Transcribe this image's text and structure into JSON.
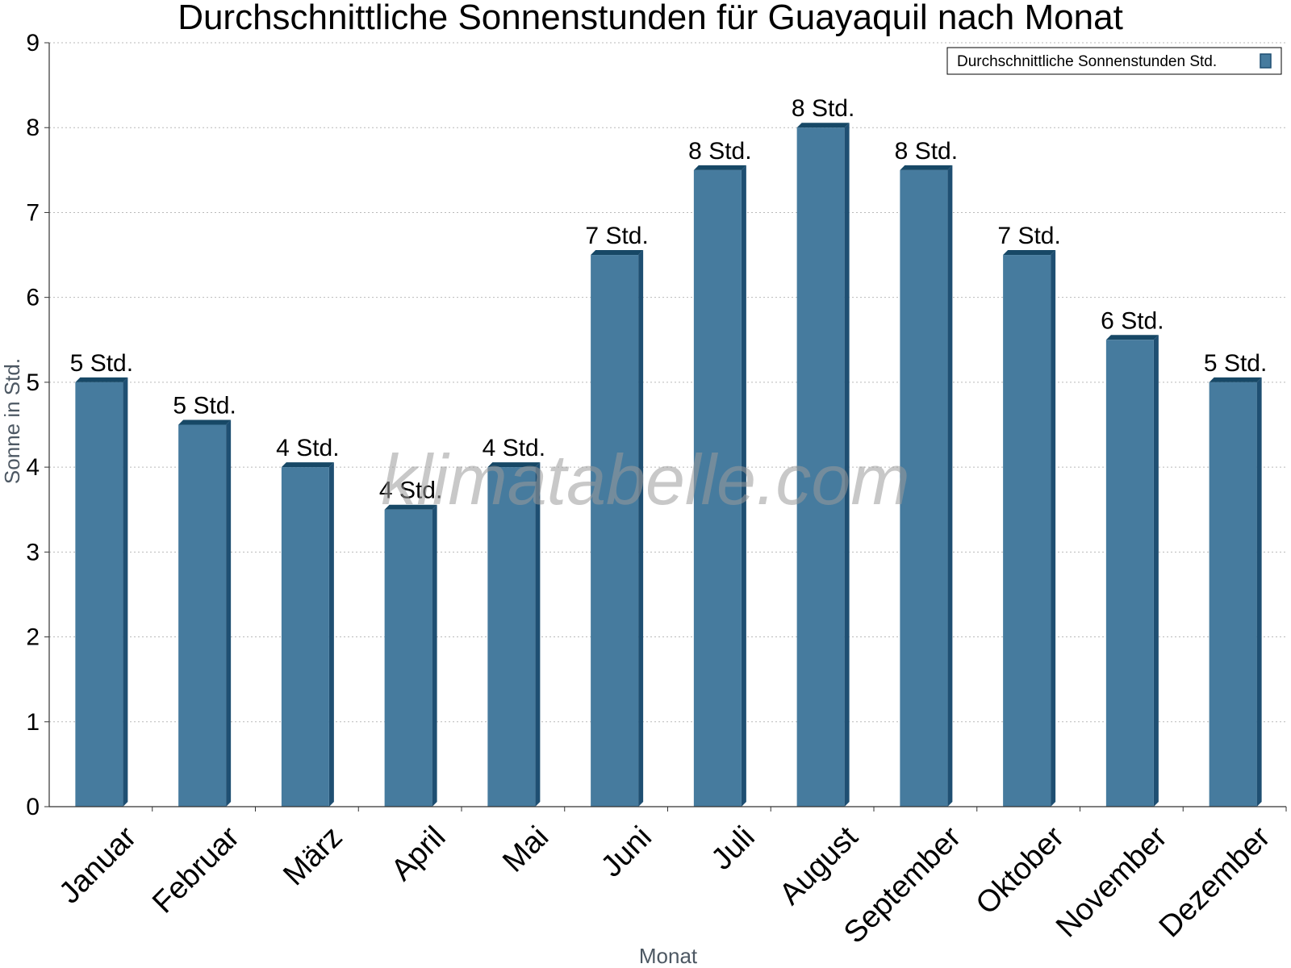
{
  "colors": {
    "bar_face": "#467b9e",
    "bar_side": "#1f4f72",
    "bar_top": "#174866",
    "grid": "#b9b9b9",
    "axis": "#333333"
  },
  "watermark": "klimatabelle.com",
  "chart_data": {
    "type": "bar",
    "title": "Durchschnittliche Sonnenstunden für Guayaquil nach Monat",
    "xlabel": "Monat",
    "ylabel": "Sonne in Std.",
    "ylim": [
      0,
      9
    ],
    "yticks": [
      "0",
      "1",
      "2",
      "3",
      "4",
      "5",
      "6",
      "7",
      "8",
      "9"
    ],
    "grid": true,
    "legend_position": "top-right",
    "categories": [
      "Januar",
      "Februar",
      "März",
      "April",
      "Mai",
      "Juni",
      "Juli",
      "August",
      "September",
      "Oktober",
      "November",
      "Dezember"
    ],
    "series": [
      {
        "name": "Durchschnittliche Sonnenstunden Std.",
        "values": [
          5,
          4.5,
          4,
          3.5,
          4,
          6.5,
          7.5,
          8,
          7.5,
          6.5,
          5.5,
          5
        ],
        "labels": [
          "5 Std.",
          "5 Std.",
          "4 Std.",
          "4 Std.",
          "4 Std.",
          "7 Std.",
          "8 Std.",
          "8 Std.",
          "8 Std.",
          "7 Std.",
          "6 Std.",
          "5 Std."
        ]
      }
    ]
  }
}
